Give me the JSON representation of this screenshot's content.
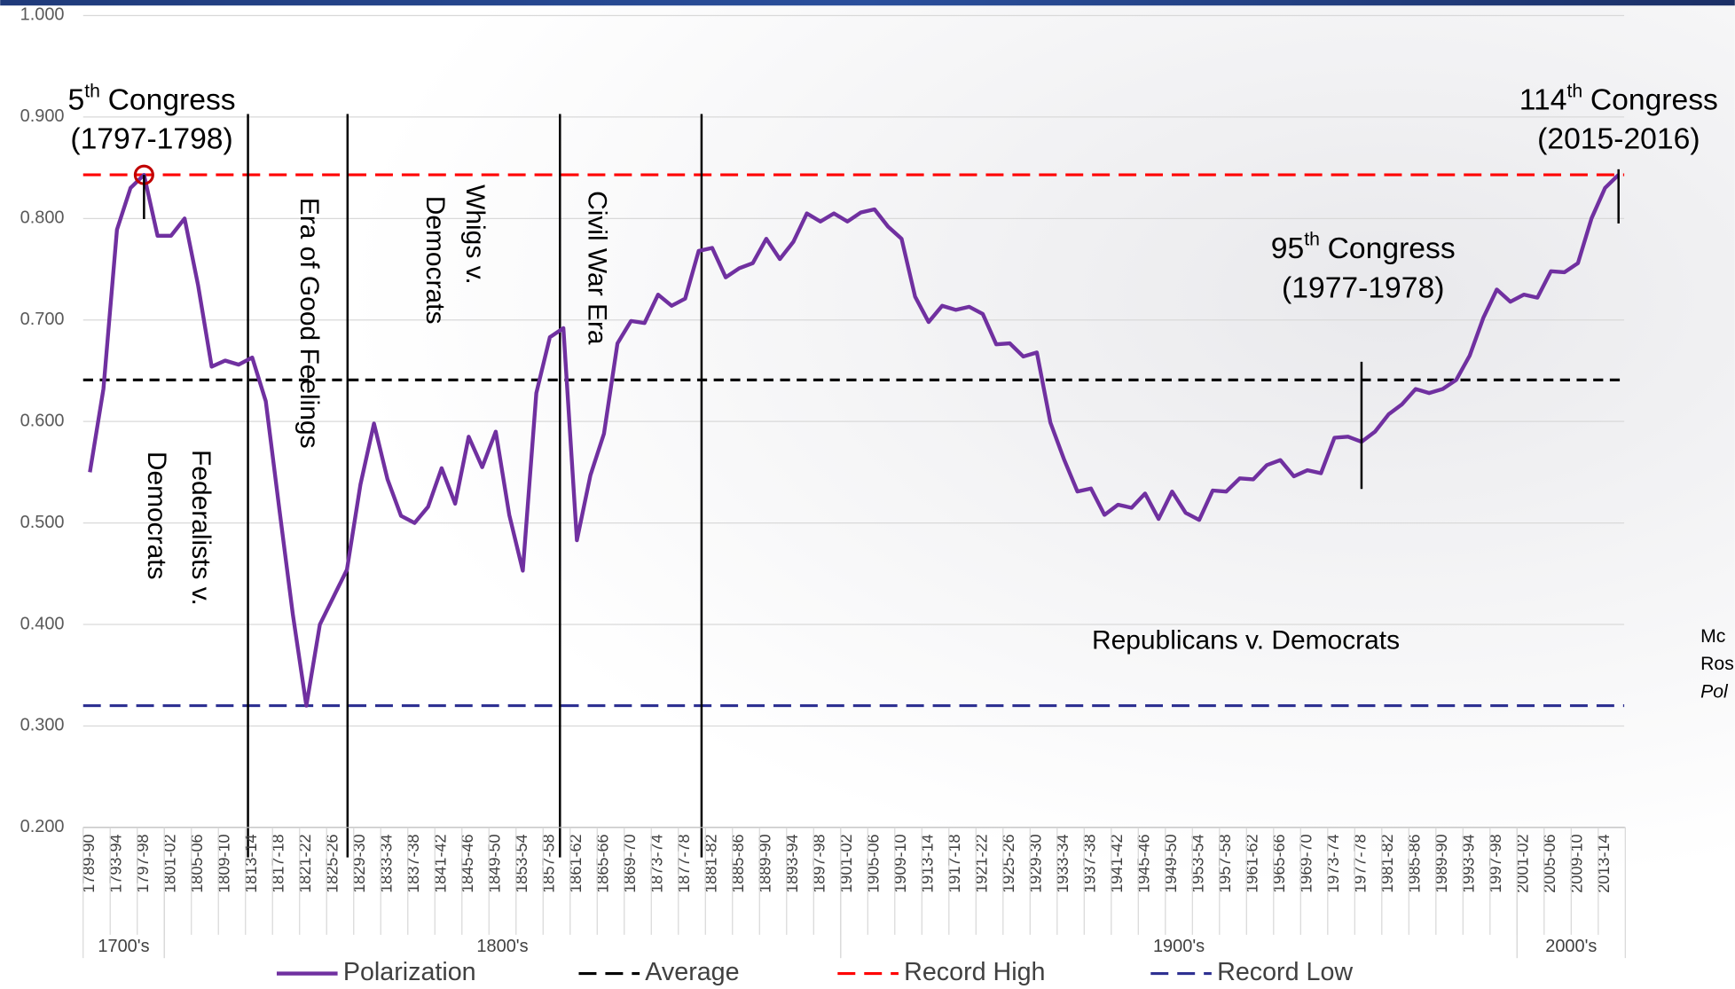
{
  "chart_data": {
    "type": "line",
    "categories": [
      "1789-90",
      null,
      "1793-94",
      null,
      "1797-98",
      null,
      "1801-02",
      null,
      "1805-06",
      null,
      "1809-10",
      null,
      "1813-14",
      null,
      "1817-18",
      null,
      "1821-22",
      null,
      "1825-26",
      null,
      "1829-30",
      null,
      "1833-34",
      null,
      "1837-38",
      null,
      "1841-42",
      null,
      "1845-46",
      null,
      "1849-50",
      null,
      "1853-54",
      null,
      "1857-58",
      null,
      "1861-62",
      null,
      "1865-66",
      null,
      "1869-70",
      null,
      "1873-74",
      null,
      "1877-78",
      null,
      "1881-82",
      null,
      "1885-86",
      null,
      "1889-90",
      null,
      "1893-94",
      null,
      "1897-98",
      null,
      "1901-02",
      null,
      "1905-06",
      null,
      "1909-10",
      null,
      "1913-14",
      null,
      "1917-18",
      null,
      "1921-22",
      null,
      "1925-26",
      null,
      "1929-30",
      null,
      "1933-34",
      null,
      "1937-38",
      null,
      "1941-42",
      null,
      "1945-46",
      null,
      "1949-50",
      null,
      "1953-54",
      null,
      "1957-58",
      null,
      "1961-62",
      null,
      "1965-66",
      null,
      "1969-70",
      null,
      "1973-74",
      null,
      "1977-78",
      null,
      "1981-82",
      null,
      "1985-86",
      null,
      "1989-90",
      null,
      "1993-94",
      null,
      "1997-98",
      null,
      "2001-02",
      null,
      "2005-06",
      null,
      "2009-10",
      null,
      "2013-14",
      null
    ],
    "category_groups": [
      "1700's",
      "1800's",
      "1900's",
      "2000's"
    ],
    "series": [
      {
        "name": "Polarization",
        "color": "#7030a0",
        "values": [
          0.55,
          0.632,
          0.789,
          0.83,
          0.843,
          0.783,
          0.783,
          0.8,
          0.734,
          0.654,
          0.66,
          0.656,
          0.663,
          0.62,
          0.514,
          0.41,
          0.32,
          0.4,
          0.427,
          0.454,
          0.538,
          0.598,
          0.543,
          0.507,
          0.5,
          0.516,
          0.554,
          0.519,
          0.585,
          0.555,
          0.59,
          0.508,
          0.453,
          0.628,
          0.683,
          0.692,
          0.483,
          0.547,
          0.588,
          0.677,
          0.699,
          0.697,
          0.725,
          0.714,
          0.721,
          0.768,
          0.771,
          0.742,
          0.751,
          0.756,
          0.78,
          0.76,
          0.777,
          0.805,
          0.797,
          0.805,
          0.797,
          0.806,
          0.809,
          0.792,
          0.78,
          0.723,
          0.698,
          0.714,
          0.71,
          0.713,
          0.706,
          0.676,
          0.677,
          0.664,
          0.668,
          0.599,
          0.563,
          0.531,
          0.534,
          0.508,
          0.518,
          0.515,
          0.529,
          0.504,
          0.531,
          0.51,
          0.503,
          0.532,
          0.531,
          0.544,
          0.543,
          0.557,
          0.562,
          0.546,
          0.552,
          0.549,
          0.584,
          0.585,
          0.58,
          0.59,
          0.607,
          0.617,
          0.632,
          0.628,
          0.632,
          0.641,
          0.665,
          0.702,
          0.73,
          0.718,
          0.725,
          0.722,
          0.748,
          0.747,
          0.756,
          0.8,
          0.83,
          0.843
        ]
      }
    ],
    "reference_lines": [
      {
        "name": "Average",
        "value": 0.641,
        "color": "#000000"
      },
      {
        "name": "Record High",
        "value": 0.843,
        "color": "#ff0000"
      },
      {
        "name": "Record Low",
        "value": 0.32,
        "color": "#2e3192"
      }
    ],
    "ylim": [
      0.2,
      1.0
    ],
    "yticks": [
      {
        "value": 0.2,
        "label": "0.200"
      },
      {
        "value": 0.3,
        "label": "0.300"
      },
      {
        "value": 0.4,
        "label": "0.400"
      },
      {
        "value": 0.5,
        "label": "0.500"
      },
      {
        "value": 0.6,
        "label": "0.600"
      },
      {
        "value": 0.7,
        "label": "0.700"
      },
      {
        "value": 0.8,
        "label": "0.800"
      },
      {
        "value": 0.9,
        "label": "0.900"
      },
      {
        "value": 1.0,
        "label": "1.000"
      }
    ],
    "grid": true,
    "legend_position": "bottom",
    "congress_annotations": [
      {
        "number": "5",
        "suffix": "th",
        "label": "Congress",
        "years": "(1797-1798)"
      },
      {
        "number": "95",
        "suffix": "th",
        "label": "Congress",
        "years": "(1977-1978)"
      },
      {
        "number": "114",
        "suffix": "th",
        "label": "Congress",
        "years": "(2015-2016)"
      }
    ],
    "era_annotations": [
      [
        "Federalists v.",
        "Democrats"
      ],
      [
        "Era of Good Feelings"
      ],
      [
        "Whigs v.",
        "Democrats"
      ],
      [
        "Civil War Era"
      ],
      [
        "Republicans v. Democrats"
      ]
    ],
    "source_fragments": [
      "Mc",
      "Ros",
      "Pol"
    ]
  }
}
